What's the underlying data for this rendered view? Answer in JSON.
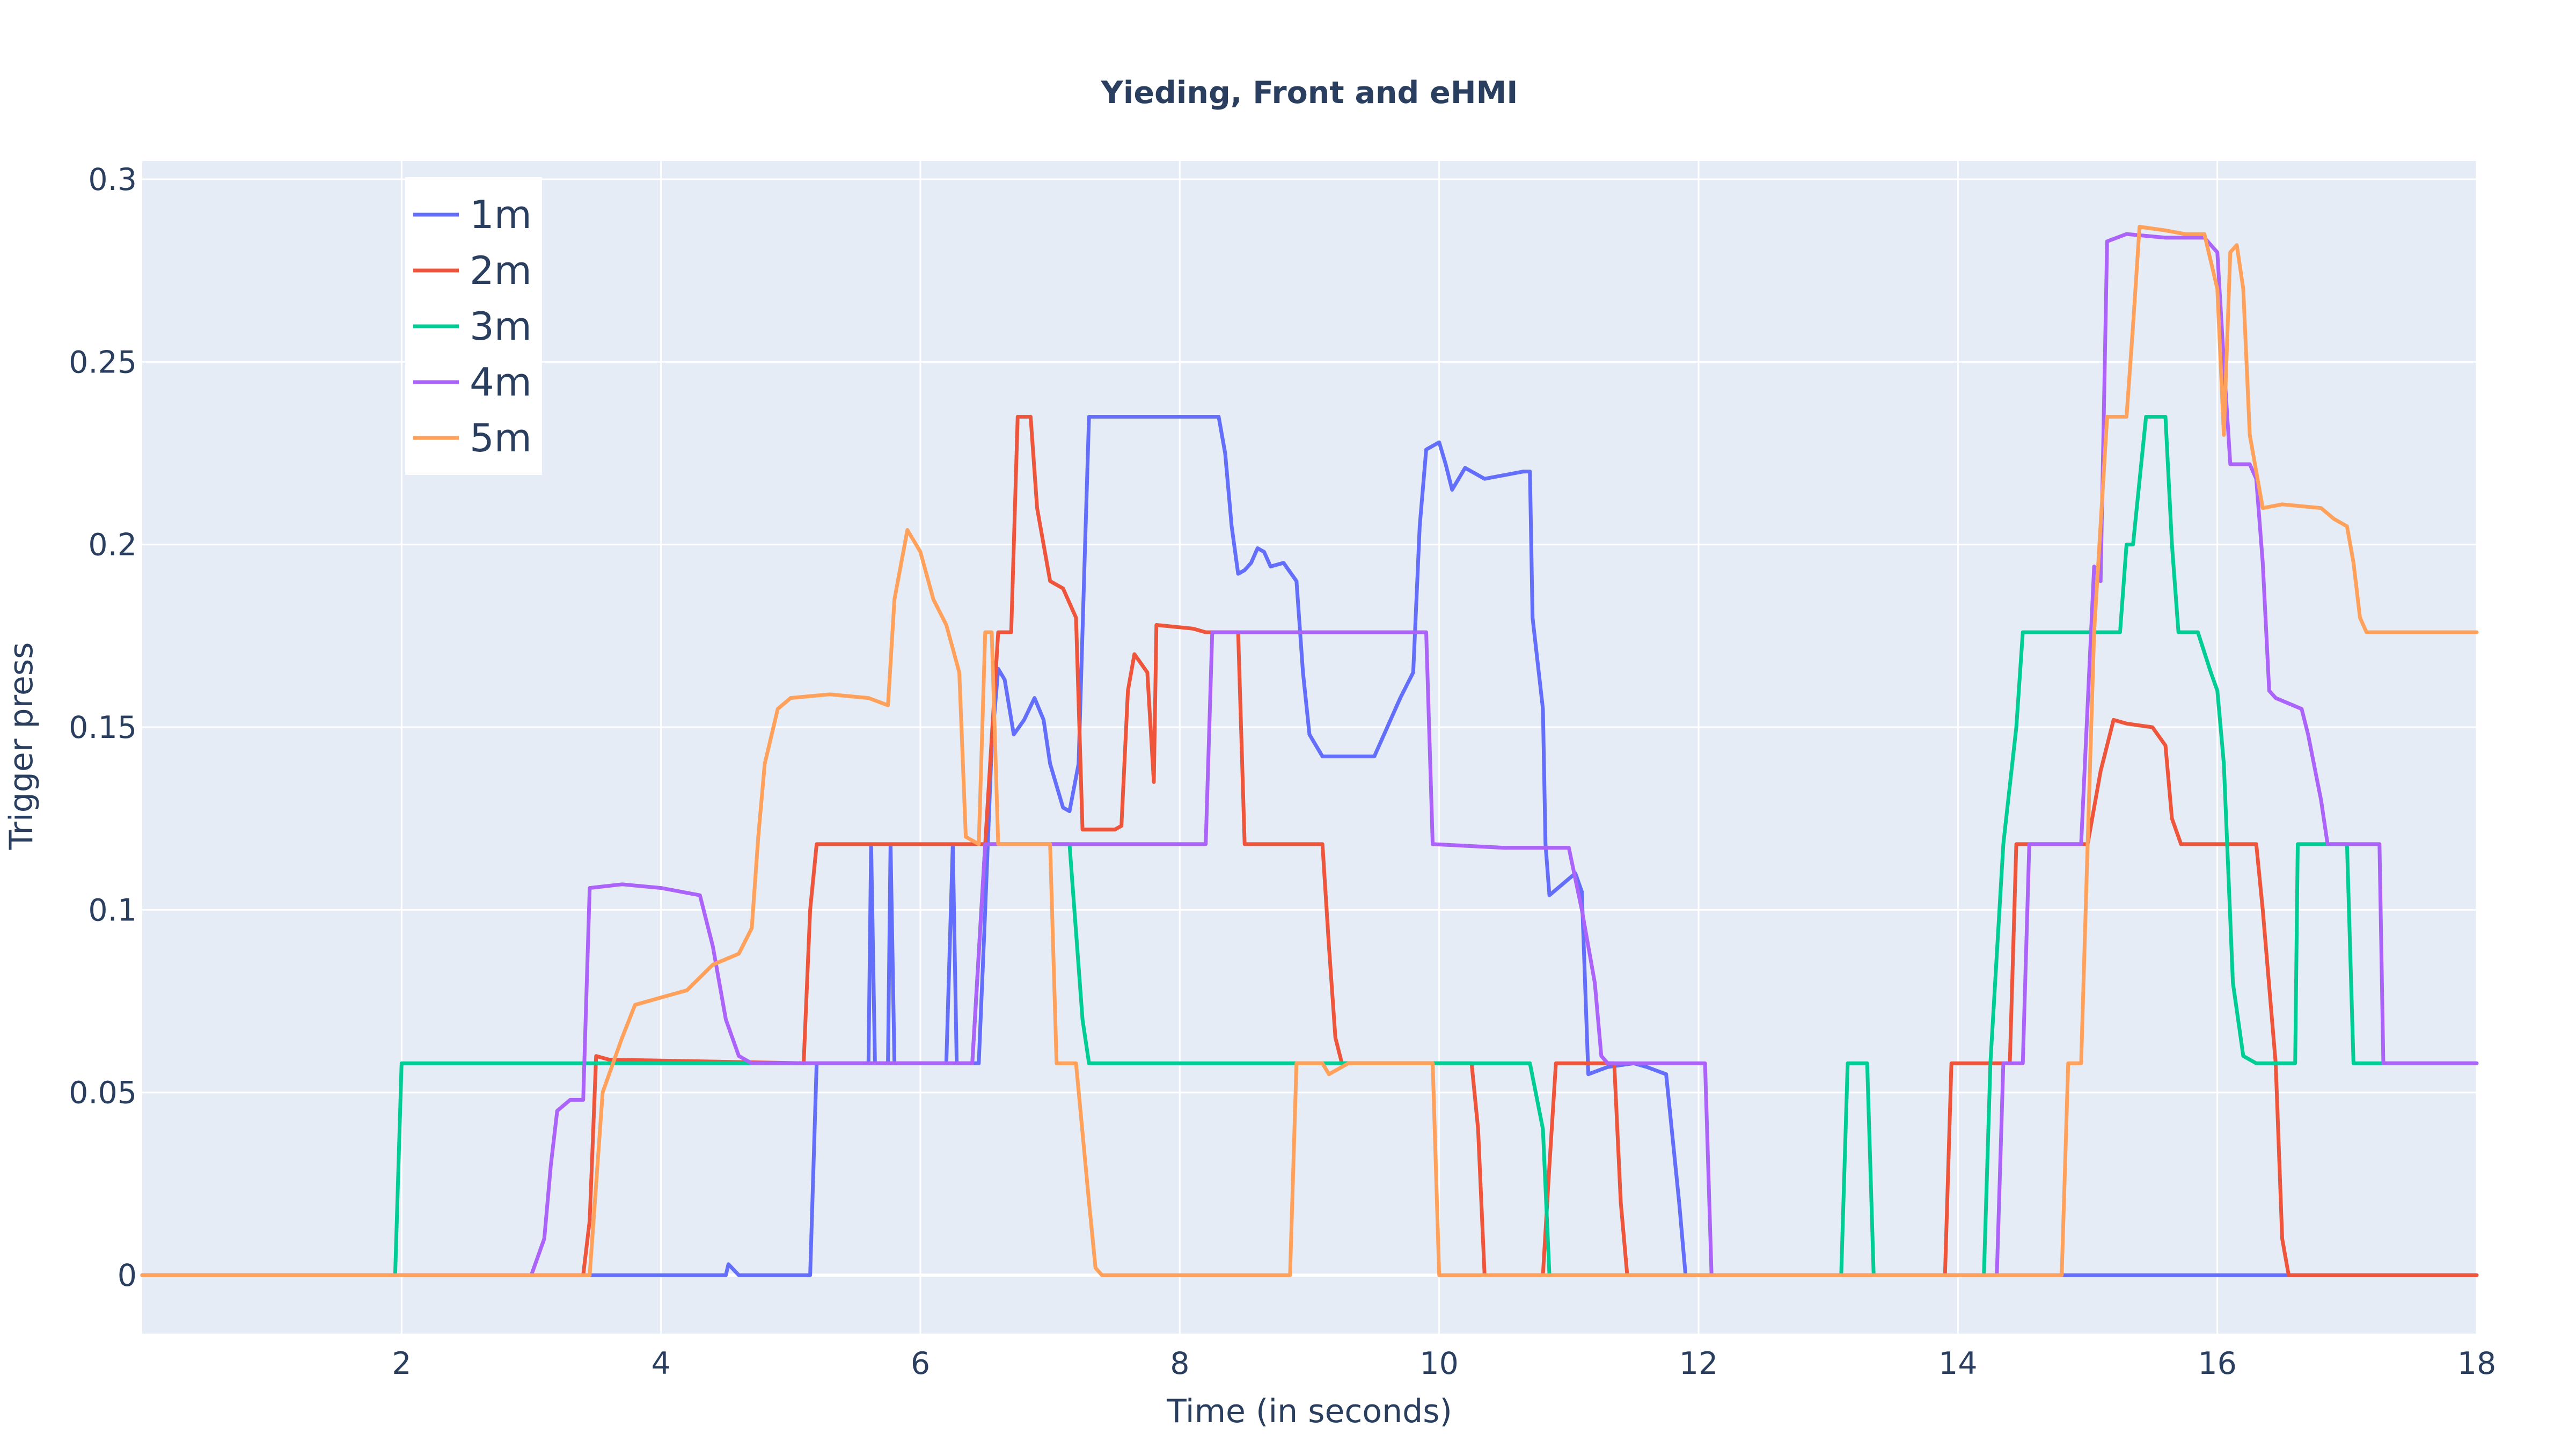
{
  "chart_data": {
    "type": "line",
    "title": "Yieding, Front and eHMI",
    "xlabel": "Time (in seconds)",
    "ylabel": "Trigger press",
    "xlim": [
      0,
      18
    ],
    "ylim": [
      -0.016,
      0.305
    ],
    "xticks": [
      2,
      4,
      6,
      8,
      10,
      12,
      14,
      16,
      18
    ],
    "xtick_labels": [
      "2",
      "4",
      "6",
      "8",
      "10",
      "12",
      "14",
      "16",
      "18"
    ],
    "yticks": [
      0,
      0.05,
      0.1,
      0.15,
      0.2,
      0.25,
      0.3
    ],
    "ytick_labels": [
      "0",
      "0.05",
      "0.1",
      "0.15",
      "0.2",
      "0.25",
      "0.3"
    ],
    "grid": true,
    "legend_position": "top-left",
    "colors": {
      "plot_bg": "#e5ecf6",
      "grid": "#ffffff",
      "text": "#2a3f5f"
    },
    "series": [
      {
        "name": "1m",
        "color": "#636efa",
        "points": [
          [
            0,
            0
          ],
          [
            3.5,
            0
          ],
          [
            4.5,
            0
          ],
          [
            4.52,
            0.003
          ],
          [
            4.6,
            0
          ],
          [
            5.15,
            0
          ],
          [
            5.2,
            0.058
          ],
          [
            5.6,
            0.058
          ],
          [
            5.62,
            0.118
          ],
          [
            5.65,
            0.058
          ],
          [
            5.75,
            0.058
          ],
          [
            5.77,
            0.118
          ],
          [
            5.8,
            0.058
          ],
          [
            6.2,
            0.058
          ],
          [
            6.25,
            0.118
          ],
          [
            6.28,
            0.058
          ],
          [
            6.45,
            0.058
          ],
          [
            6.5,
            0.1
          ],
          [
            6.55,
            0.145
          ],
          [
            6.6,
            0.166
          ],
          [
            6.65,
            0.163
          ],
          [
            6.72,
            0.148
          ],
          [
            6.8,
            0.152
          ],
          [
            6.88,
            0.158
          ],
          [
            6.95,
            0.152
          ],
          [
            7.0,
            0.14
          ],
          [
            7.1,
            0.128
          ],
          [
            7.15,
            0.127
          ],
          [
            7.22,
            0.14
          ],
          [
            7.27,
            0.2
          ],
          [
            7.3,
            0.235
          ],
          [
            8.3,
            0.235
          ],
          [
            8.35,
            0.225
          ],
          [
            8.4,
            0.205
          ],
          [
            8.45,
            0.192
          ],
          [
            8.5,
            0.193
          ],
          [
            8.55,
            0.195
          ],
          [
            8.6,
            0.199
          ],
          [
            8.65,
            0.198
          ],
          [
            8.7,
            0.194
          ],
          [
            8.8,
            0.195
          ],
          [
            8.9,
            0.19
          ],
          [
            8.95,
            0.165
          ],
          [
            9.0,
            0.148
          ],
          [
            9.1,
            0.142
          ],
          [
            9.3,
            0.142
          ],
          [
            9.5,
            0.142
          ],
          [
            9.6,
            0.15
          ],
          [
            9.7,
            0.158
          ],
          [
            9.8,
            0.165
          ],
          [
            9.85,
            0.205
          ],
          [
            9.9,
            0.226
          ],
          [
            10.0,
            0.228
          ],
          [
            10.05,
            0.222
          ],
          [
            10.1,
            0.215
          ],
          [
            10.2,
            0.221
          ],
          [
            10.35,
            0.218
          ],
          [
            10.5,
            0.219
          ],
          [
            10.65,
            0.22
          ],
          [
            10.7,
            0.22
          ],
          [
            10.72,
            0.18
          ],
          [
            10.8,
            0.155
          ],
          [
            10.82,
            0.118
          ],
          [
            10.85,
            0.104
          ],
          [
            11.05,
            0.11
          ],
          [
            11.1,
            0.105
          ],
          [
            11.15,
            0.055
          ],
          [
            11.3,
            0.057
          ],
          [
            11.5,
            0.058
          ],
          [
            11.6,
            0.057
          ],
          [
            11.75,
            0.055
          ],
          [
            11.85,
            0.02
          ],
          [
            11.9,
            0
          ],
          [
            18,
            0
          ]
        ]
      },
      {
        "name": "2m",
        "color": "#EF553B",
        "points": [
          [
            0,
            0
          ],
          [
            3.4,
            0
          ],
          [
            3.45,
            0.015
          ],
          [
            3.5,
            0.06
          ],
          [
            3.6,
            0.059
          ],
          [
            5.1,
            0.058
          ],
          [
            5.15,
            0.1
          ],
          [
            5.2,
            0.118
          ],
          [
            6.0,
            0.118
          ],
          [
            6.5,
            0.118
          ],
          [
            6.6,
            0.176
          ],
          [
            6.7,
            0.176
          ],
          [
            6.75,
            0.235
          ],
          [
            6.85,
            0.235
          ],
          [
            6.9,
            0.21
          ],
          [
            7.0,
            0.19
          ],
          [
            7.1,
            0.188
          ],
          [
            7.2,
            0.18
          ],
          [
            7.25,
            0.122
          ],
          [
            7.5,
            0.122
          ],
          [
            7.55,
            0.123
          ],
          [
            7.6,
            0.16
          ],
          [
            7.65,
            0.17
          ],
          [
            7.75,
            0.165
          ],
          [
            7.8,
            0.135
          ],
          [
            7.82,
            0.178
          ],
          [
            8.1,
            0.177
          ],
          [
            8.2,
            0.176
          ],
          [
            8.45,
            0.176
          ],
          [
            8.5,
            0.118
          ],
          [
            9.1,
            0.118
          ],
          [
            9.15,
            0.09
          ],
          [
            9.2,
            0.065
          ],
          [
            9.25,
            0.058
          ],
          [
            10.25,
            0.058
          ],
          [
            10.3,
            0.04
          ],
          [
            10.35,
            0
          ],
          [
            10.8,
            0
          ],
          [
            10.85,
            0.03
          ],
          [
            10.9,
            0.058
          ],
          [
            11.35,
            0.058
          ],
          [
            11.4,
            0.02
          ],
          [
            11.45,
            0
          ],
          [
            13.9,
            0
          ],
          [
            13.95,
            0.058
          ],
          [
            14.4,
            0.058
          ],
          [
            14.45,
            0.118
          ],
          [
            15.0,
            0.118
          ],
          [
            15.1,
            0.138
          ],
          [
            15.2,
            0.152
          ],
          [
            15.3,
            0.151
          ],
          [
            15.5,
            0.15
          ],
          [
            15.6,
            0.145
          ],
          [
            15.65,
            0.125
          ],
          [
            15.72,
            0.118
          ],
          [
            16.3,
            0.118
          ],
          [
            16.35,
            0.1
          ],
          [
            16.45,
            0.058
          ],
          [
            16.5,
            0.01
          ],
          [
            16.55,
            0
          ],
          [
            18,
            0
          ]
        ]
      },
      {
        "name": "3m",
        "color": "#00cc96",
        "points": [
          [
            0,
            0
          ],
          [
            1.95,
            0
          ],
          [
            2.0,
            0.058
          ],
          [
            6.4,
            0.058
          ],
          [
            6.5,
            0.118
          ],
          [
            7.0,
            0.118
          ],
          [
            7.15,
            0.118
          ],
          [
            7.25,
            0.07
          ],
          [
            7.3,
            0.058
          ],
          [
            10.7,
            0.058
          ],
          [
            10.8,
            0.04
          ],
          [
            10.85,
            0
          ],
          [
            13.1,
            0
          ],
          [
            13.15,
            0.058
          ],
          [
            13.3,
            0.058
          ],
          [
            13.35,
            0
          ],
          [
            14.2,
            0
          ],
          [
            14.25,
            0.058
          ],
          [
            14.35,
            0.118
          ],
          [
            14.45,
            0.15
          ],
          [
            14.5,
            0.176
          ],
          [
            15.15,
            0.176
          ],
          [
            15.25,
            0.176
          ],
          [
            15.3,
            0.2
          ],
          [
            15.35,
            0.2
          ],
          [
            15.45,
            0.235
          ],
          [
            15.6,
            0.235
          ],
          [
            15.65,
            0.2
          ],
          [
            15.7,
            0.176
          ],
          [
            15.85,
            0.176
          ],
          [
            15.95,
            0.165
          ],
          [
            16.0,
            0.16
          ],
          [
            16.05,
            0.14
          ],
          [
            16.12,
            0.08
          ],
          [
            16.2,
            0.06
          ],
          [
            16.3,
            0.058
          ],
          [
            16.6,
            0.058
          ],
          [
            16.62,
            0.118
          ],
          [
            17.0,
            0.118
          ],
          [
            17.05,
            0.058
          ],
          [
            18,
            0.058
          ]
        ]
      },
      {
        "name": "4m",
        "color": "#ab63fa",
        "points": [
          [
            0,
            0
          ],
          [
            3.0,
            0
          ],
          [
            3.1,
            0.01
          ],
          [
            3.15,
            0.03
          ],
          [
            3.2,
            0.045
          ],
          [
            3.3,
            0.048
          ],
          [
            3.4,
            0.048
          ],
          [
            3.45,
            0.106
          ],
          [
            3.7,
            0.107
          ],
          [
            4.0,
            0.106
          ],
          [
            4.3,
            0.104
          ],
          [
            4.4,
            0.09
          ],
          [
            4.5,
            0.07
          ],
          [
            4.6,
            0.06
          ],
          [
            4.7,
            0.058
          ],
          [
            6.4,
            0.058
          ],
          [
            6.5,
            0.118
          ],
          [
            8.2,
            0.118
          ],
          [
            8.25,
            0.176
          ],
          [
            9.8,
            0.176
          ],
          [
            9.9,
            0.176
          ],
          [
            9.95,
            0.118
          ],
          [
            10.5,
            0.117
          ],
          [
            11.0,
            0.117
          ],
          [
            11.1,
            0.1
          ],
          [
            11.2,
            0.08
          ],
          [
            11.25,
            0.06
          ],
          [
            11.3,
            0.058
          ],
          [
            12.05,
            0.058
          ],
          [
            12.1,
            0
          ],
          [
            14.3,
            0
          ],
          [
            14.35,
            0.058
          ],
          [
            14.5,
            0.058
          ],
          [
            14.55,
            0.118
          ],
          [
            14.95,
            0.118
          ],
          [
            15.05,
            0.194
          ],
          [
            15.1,
            0.19
          ],
          [
            15.15,
            0.283
          ],
          [
            15.3,
            0.285
          ],
          [
            15.6,
            0.284
          ],
          [
            15.9,
            0.284
          ],
          [
            16.0,
            0.28
          ],
          [
            16.05,
            0.25
          ],
          [
            16.1,
            0.222
          ],
          [
            16.25,
            0.222
          ],
          [
            16.3,
            0.218
          ],
          [
            16.35,
            0.195
          ],
          [
            16.4,
            0.16
          ],
          [
            16.45,
            0.158
          ],
          [
            16.65,
            0.155
          ],
          [
            16.7,
            0.148
          ],
          [
            16.8,
            0.13
          ],
          [
            16.85,
            0.118
          ],
          [
            17.25,
            0.118
          ],
          [
            17.28,
            0.058
          ],
          [
            18,
            0.058
          ]
        ]
      },
      {
        "name": "5m",
        "color": "#FFA15A",
        "points": [
          [
            0,
            0
          ],
          [
            3.45,
            0
          ],
          [
            3.55,
            0.05
          ],
          [
            3.7,
            0.065
          ],
          [
            3.8,
            0.074
          ],
          [
            4.0,
            0.076
          ],
          [
            4.2,
            0.078
          ],
          [
            4.4,
            0.085
          ],
          [
            4.6,
            0.088
          ],
          [
            4.7,
            0.095
          ],
          [
            4.75,
            0.12
          ],
          [
            4.8,
            0.14
          ],
          [
            4.9,
            0.155
          ],
          [
            5.0,
            0.158
          ],
          [
            5.3,
            0.159
          ],
          [
            5.6,
            0.158
          ],
          [
            5.75,
            0.156
          ],
          [
            5.8,
            0.185
          ],
          [
            5.9,
            0.204
          ],
          [
            6.0,
            0.198
          ],
          [
            6.1,
            0.185
          ],
          [
            6.2,
            0.178
          ],
          [
            6.3,
            0.165
          ],
          [
            6.35,
            0.12
          ],
          [
            6.45,
            0.118
          ],
          [
            6.5,
            0.176
          ],
          [
            6.55,
            0.176
          ],
          [
            6.6,
            0.118
          ],
          [
            7.0,
            0.118
          ],
          [
            7.05,
            0.058
          ],
          [
            7.2,
            0.058
          ],
          [
            7.3,
            0.02
          ],
          [
            7.35,
            0.002
          ],
          [
            7.4,
            0
          ],
          [
            8.85,
            0
          ],
          [
            8.9,
            0.058
          ],
          [
            9.1,
            0.058
          ],
          [
            9.15,
            0.055
          ],
          [
            9.3,
            0.058
          ],
          [
            9.95,
            0.058
          ],
          [
            10.0,
            0
          ],
          [
            14.8,
            0
          ],
          [
            14.85,
            0.058
          ],
          [
            14.95,
            0.058
          ],
          [
            15.0,
            0.118
          ],
          [
            15.05,
            0.176
          ],
          [
            15.15,
            0.235
          ],
          [
            15.3,
            0.235
          ],
          [
            15.35,
            0.26
          ],
          [
            15.4,
            0.287
          ],
          [
            15.6,
            0.286
          ],
          [
            15.75,
            0.285
          ],
          [
            15.9,
            0.285
          ],
          [
            16.0,
            0.27
          ],
          [
            16.05,
            0.23
          ],
          [
            16.1,
            0.28
          ],
          [
            16.15,
            0.282
          ],
          [
            16.2,
            0.27
          ],
          [
            16.25,
            0.23
          ],
          [
            16.35,
            0.21
          ],
          [
            16.5,
            0.211
          ],
          [
            16.8,
            0.21
          ],
          [
            16.9,
            0.207
          ],
          [
            17.0,
            0.205
          ],
          [
            17.05,
            0.195
          ],
          [
            17.1,
            0.18
          ],
          [
            17.15,
            0.176
          ],
          [
            18,
            0.176
          ]
        ]
      }
    ]
  }
}
